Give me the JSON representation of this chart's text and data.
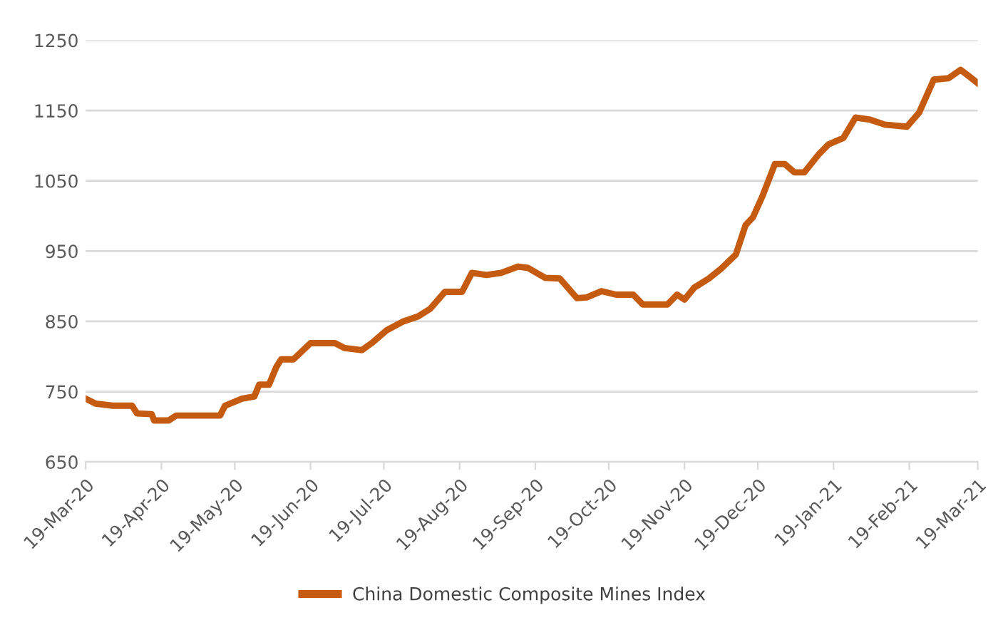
{
  "chart_data": {
    "type": "line",
    "x": [
      "2020-03-19",
      "2020-03-23",
      "2020-03-30",
      "2020-04-07",
      "2020-04-09",
      "2020-04-15",
      "2020-04-16",
      "2020-04-22",
      "2020-04-25",
      "2020-05-13",
      "2020-05-15",
      "2020-05-22",
      "2020-05-27",
      "2020-05-29",
      "2020-06-02",
      "2020-06-05",
      "2020-06-07",
      "2020-06-12",
      "2020-06-19",
      "2020-06-29",
      "2020-07-03",
      "2020-07-10",
      "2020-07-14",
      "2020-07-20",
      "2020-07-27",
      "2020-08-02",
      "2020-08-07",
      "2020-08-13",
      "2020-08-20",
      "2020-08-24",
      "2020-08-30",
      "2020-09-05",
      "2020-09-12",
      "2020-09-16",
      "2020-09-23",
      "2020-09-29",
      "2020-10-06",
      "2020-10-10",
      "2020-10-16",
      "2020-10-22",
      "2020-10-29",
      "2020-11-02",
      "2020-11-12",
      "2020-11-16",
      "2020-11-19",
      "2020-11-23",
      "2020-11-29",
      "2020-12-04",
      "2020-12-10",
      "2020-12-14",
      "2020-12-17",
      "2020-12-21",
      "2020-12-26",
      "2020-12-30",
      "2021-01-03",
      "2021-01-07",
      "2021-01-13",
      "2021-01-17",
      "2021-01-23",
      "2021-01-28",
      "2021-02-03",
      "2021-02-09",
      "2021-02-18",
      "2021-02-23",
      "2021-03-01",
      "2021-03-07",
      "2021-03-12",
      "2021-03-15",
      "2021-03-19"
    ],
    "series": [
      {
        "name": "China Domestic Composite Mines Index",
        "color": "#c55a11",
        "values": [
          740,
          733,
          730,
          730,
          719,
          718,
          709,
          709,
          716,
          716,
          730,
          740,
          743,
          760,
          760,
          785,
          796,
          796,
          819,
          819,
          812,
          809,
          819,
          837,
          850,
          857,
          868,
          892,
          892,
          919,
          916,
          919,
          928,
          926,
          912,
          911,
          883,
          884,
          893,
          888,
          888,
          874,
          874,
          888,
          881,
          898,
          911,
          925,
          945,
          987,
          998,
          1029,
          1074,
          1074,
          1062,
          1062,
          1088,
          1102,
          1111,
          1140,
          1137,
          1130,
          1127,
          1147,
          1194,
          1196,
          1208,
          1200,
          1189
        ]
      }
    ],
    "xlim": [
      "2020-03-19",
      "2021-03-19"
    ],
    "xticks": [
      {
        "value": "2020-03-19",
        "label": "19-Mar-20"
      },
      {
        "value": "2020-04-19",
        "label": "19-Apr-20"
      },
      {
        "value": "2020-05-19",
        "label": "19-May-20"
      },
      {
        "value": "2020-06-19",
        "label": "19-Jun-20"
      },
      {
        "value": "2020-07-19",
        "label": "19-Jul-20"
      },
      {
        "value": "2020-08-19",
        "label": "19-Aug-20"
      },
      {
        "value": "2020-09-19",
        "label": "19-Sep-20"
      },
      {
        "value": "2020-10-19",
        "label": "19-Oct-20"
      },
      {
        "value": "2020-11-19",
        "label": "19-Nov-20"
      },
      {
        "value": "2020-12-19",
        "label": "19-Dec-20"
      },
      {
        "value": "2021-01-19",
        "label": "19-Jan-21"
      },
      {
        "value": "2021-02-19",
        "label": "19-Feb-21"
      },
      {
        "value": "2021-03-19",
        "label": "19-Mar-21"
      }
    ],
    "ylim": [
      650,
      1250
    ],
    "yticks": [
      650,
      750,
      850,
      950,
      1050,
      1150,
      1250
    ],
    "grid": "y",
    "legend": "bottom",
    "marker": "none",
    "line_style": "solid"
  }
}
